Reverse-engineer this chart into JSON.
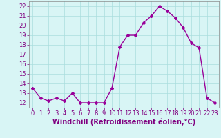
{
  "x": [
    0,
    1,
    2,
    3,
    4,
    5,
    6,
    7,
    8,
    9,
    10,
    11,
    12,
    13,
    14,
    15,
    16,
    17,
    18,
    19,
    20,
    21,
    22,
    23
  ],
  "y": [
    13.5,
    12.5,
    12.2,
    12.5,
    12.2,
    13.0,
    12.0,
    12.0,
    12.0,
    12.0,
    13.5,
    17.8,
    19.0,
    19.0,
    20.3,
    21.0,
    22.0,
    21.5,
    20.8,
    19.8,
    18.2,
    17.7,
    12.5,
    12.0
  ],
  "line_color": "#990099",
  "marker": "D",
  "marker_size": 2,
  "linewidth": 1.0,
  "xlabel": "Windchill (Refroidissement éolien,°C)",
  "xlabel_fontsize": 7,
  "xlabel_color": "#800080",
  "ylim": [
    11.5,
    22.5
  ],
  "xlim": [
    -0.5,
    23.5
  ],
  "yticks": [
    12,
    13,
    14,
    15,
    16,
    17,
    18,
    19,
    20,
    21,
    22
  ],
  "xticks": [
    0,
    1,
    2,
    3,
    4,
    5,
    6,
    7,
    8,
    9,
    10,
    11,
    12,
    13,
    14,
    15,
    16,
    17,
    18,
    19,
    20,
    21,
    22,
    23
  ],
  "tick_fontsize": 6,
  "tick_color": "#800080",
  "grid_color": "#aadddd",
  "bg_color": "#d8f5f5",
  "fig_bg_color": "#d8f5f5"
}
